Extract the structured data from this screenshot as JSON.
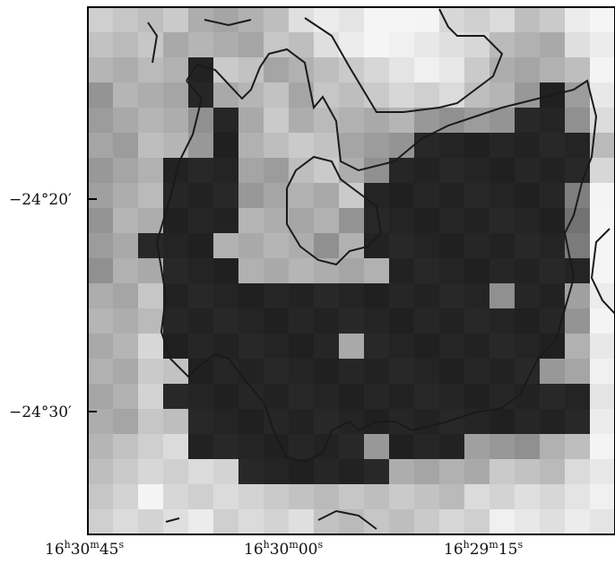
{
  "figure": {
    "y_tick_labels": [
      "−24°20′",
      "−24°30′"
    ],
    "x_tick_labels": [
      [
        "16",
        "h",
        "30",
        "m",
        "45",
        "s"
      ],
      [
        "16",
        "h",
        "30",
        "m",
        "00",
        "s"
      ],
      [
        "16",
        "h",
        "29",
        "m",
        "15",
        "s"
      ]
    ]
  }
}
